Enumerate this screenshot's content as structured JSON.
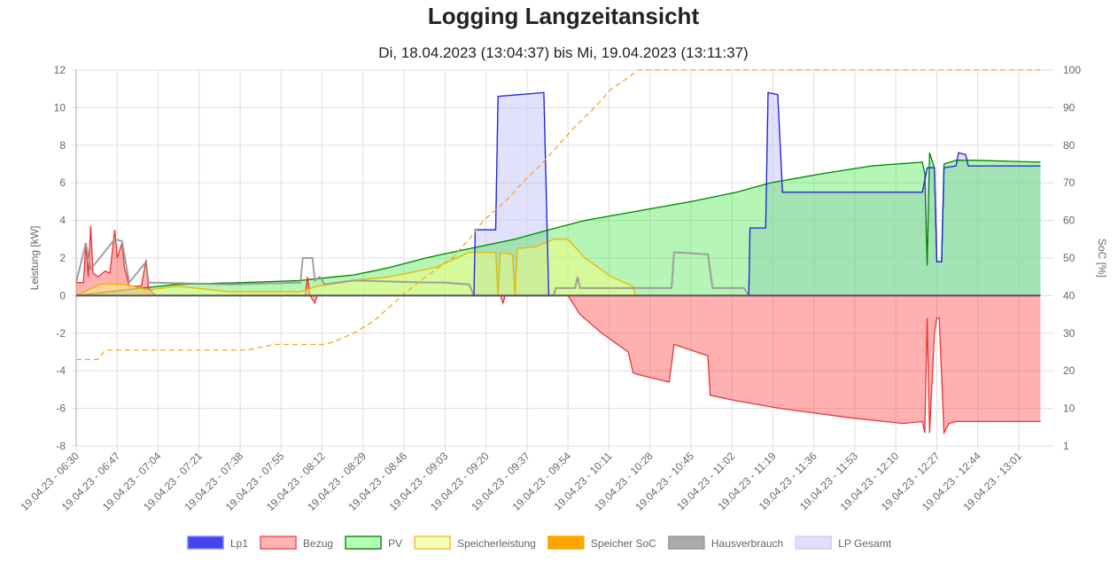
{
  "chart_data": {
    "type": "line",
    "title": "Logging Langzeitansicht",
    "subtitle": "Di, 18.04.2023 (13:04:37) bis Mi, 19.04.2023 (13:11:37)",
    "ylabel": "Leistung [kW]",
    "y2label": "SoC [%]",
    "ylim": [
      -8,
      12
    ],
    "y_ticks": [
      "12",
      "10",
      "8",
      "6",
      "4",
      "2",
      "0",
      "-2",
      "-4",
      "-6",
      "-8"
    ],
    "y2lim": [
      0,
      100
    ],
    "y2_ticks": [
      "100",
      "90",
      "80",
      "70",
      "60",
      "50",
      "40",
      "30",
      "20",
      "10",
      "1"
    ],
    "x_unit": "minutes since 19.04.23 06:30",
    "xlim": [
      0,
      405
    ],
    "x_ticks": [
      "19.04.23 - 06:30",
      "19.04.23 - 06:47",
      "19.04.23 - 07:04",
      "19.04.23 - 07:21",
      "19.04.23 - 07:38",
      "19.04.23 - 07:55",
      "19.04.23 - 08:12",
      "19.04.23 - 08:29",
      "19.04.23 - 08:46",
      "19.04.23 - 09:03",
      "19.04.23 - 09:20",
      "19.04.23 - 09:37",
      "19.04.23 - 09:54",
      "19.04.23 - 10:11",
      "19.04.23 - 10:28",
      "19.04.23 - 10:45",
      "19.04.23 - 11:02",
      "19.04.23 - 11:19",
      "19.04.23 - 11:36",
      "19.04.23 - 11:53",
      "19.04.23 - 12:10",
      "19.04.23 - 12:27",
      "19.04.23 - 12:44",
      "19.04.23 - 13:01"
    ],
    "grid": true,
    "legend_position": "bottom",
    "series": [
      {
        "name": "LP Gesamt",
        "axis": "left",
        "stroke": "#9999ee",
        "fill": "rgba(200,200,250,0.55)",
        "points": [
          [
            0,
            0
          ],
          [
            165,
            0
          ],
          [
            165.5,
            3.5
          ],
          [
            174,
            3.5
          ],
          [
            175,
            10.6
          ],
          [
            194,
            10.8
          ],
          [
            196,
            0
          ],
          [
            279,
            0
          ],
          [
            279.5,
            3.6
          ],
          [
            286,
            3.6
          ],
          [
            287,
            10.8
          ],
          [
            291,
            10.7
          ],
          [
            293,
            5.5
          ],
          [
            351,
            5.5
          ],
          [
            353,
            6.8
          ],
          [
            356,
            6.8
          ],
          [
            357,
            1.8
          ],
          [
            359,
            1.8
          ],
          [
            360,
            6.8
          ],
          [
            365,
            6.9
          ],
          [
            366,
            7.6
          ],
          [
            369,
            7.5
          ],
          [
            370,
            6.9
          ],
          [
            400,
            6.9
          ]
        ]
      },
      {
        "name": "PV",
        "axis": "left",
        "stroke": "#008000",
        "fill": "rgba(60,230,60,0.38)",
        "points": [
          [
            0,
            0
          ],
          [
            20,
            0.3
          ],
          [
            42,
            0.6
          ],
          [
            70,
            0.7
          ],
          [
            93,
            0.8
          ],
          [
            100,
            0.9
          ],
          [
            115,
            1.1
          ],
          [
            123,
            1.3
          ],
          [
            130,
            1.5
          ],
          [
            145,
            2.0
          ],
          [
            152,
            2.2
          ],
          [
            167,
            2.6
          ],
          [
            182,
            3.0
          ],
          [
            196,
            3.5
          ],
          [
            211,
            4.0
          ],
          [
            233,
            4.5
          ],
          [
            255,
            5.0
          ],
          [
            274,
            5.5
          ],
          [
            288,
            6.0
          ],
          [
            310,
            6.5
          ],
          [
            330,
            6.9
          ],
          [
            340,
            7.0
          ],
          [
            351,
            7.1
          ],
          [
            352,
            6.5
          ],
          [
            353,
            1.6
          ],
          [
            354,
            7.6
          ],
          [
            356,
            6.8
          ],
          [
            357,
            1.8
          ],
          [
            359,
            1.8
          ],
          [
            360,
            7.0
          ],
          [
            365,
            7.2
          ],
          [
            373,
            7.2
          ],
          [
            400,
            7.1
          ]
        ]
      },
      {
        "name": "Bezug",
        "axis": "left",
        "stroke": "#ee3333",
        "fill": "rgba(255,80,80,0.45)",
        "points": [
          [
            0,
            0.7
          ],
          [
            3,
            0.7
          ],
          [
            4,
            2.8
          ],
          [
            5,
            1.0
          ],
          [
            6,
            3.7
          ],
          [
            7,
            1.2
          ],
          [
            9,
            1.0
          ],
          [
            12,
            1.3
          ],
          [
            14,
            1.2
          ],
          [
            16,
            3.5
          ],
          [
            17,
            2.0
          ],
          [
            19,
            2.8
          ],
          [
            20,
            1.5
          ],
          [
            22,
            0.5
          ],
          [
            27,
            0.5
          ],
          [
            29,
            1.9
          ],
          [
            30,
            0.4
          ],
          [
            33,
            0
          ],
          [
            95,
            0
          ],
          [
            96,
            1.0
          ],
          [
            97,
            0
          ],
          [
            99,
            -0.4
          ],
          [
            100,
            0
          ],
          [
            176,
            0
          ],
          [
            177,
            -0.4
          ],
          [
            178,
            0
          ],
          [
            204,
            0
          ],
          [
            207,
            -0.6
          ],
          [
            209,
            -1.0
          ],
          [
            218,
            -2.0
          ],
          [
            229,
            -3.0
          ],
          [
            231,
            -4.1
          ],
          [
            233,
            -4.2
          ],
          [
            246,
            -4.6
          ],
          [
            248,
            -2.6
          ],
          [
            262,
            -3.2
          ],
          [
            263,
            -5.3
          ],
          [
            274,
            -5.6
          ],
          [
            292,
            -6.0
          ],
          [
            321,
            -6.5
          ],
          [
            343,
            -6.8
          ],
          [
            351,
            -6.7
          ],
          [
            352,
            -7.3
          ],
          [
            353,
            -1.2
          ],
          [
            354,
            -7.3
          ],
          [
            356,
            -2.0
          ],
          [
            357,
            -1.2
          ],
          [
            358,
            -1.2
          ],
          [
            360,
            -7.3
          ],
          [
            362,
            -6.8
          ],
          [
            365,
            -6.7
          ],
          [
            400,
            -6.7
          ]
        ]
      },
      {
        "name": "Speicherleistung",
        "axis": "left",
        "stroke": "#e6b800",
        "fill": "rgba(255,255,120,0.45)",
        "points": [
          [
            0,
            0
          ],
          [
            5,
            0.3
          ],
          [
            10,
            0.6
          ],
          [
            20,
            0.6
          ],
          [
            30,
            0.3
          ],
          [
            42,
            0.5
          ],
          [
            64,
            0.2
          ],
          [
            93,
            0.2
          ],
          [
            100,
            0.5
          ],
          [
            115,
            0.8
          ],
          [
            130,
            1.0
          ],
          [
            149,
            1.5
          ],
          [
            163,
            2.3
          ],
          [
            174,
            2.3
          ],
          [
            175,
            0
          ],
          [
            176,
            2.3
          ],
          [
            181,
            2.2
          ],
          [
            182,
            0
          ],
          [
            183,
            2.5
          ],
          [
            191,
            2.6
          ],
          [
            198,
            3.0
          ],
          [
            204,
            3.0
          ],
          [
            211,
            2.0
          ],
          [
            222,
            1.0
          ],
          [
            231,
            0.5
          ],
          [
            232,
            0
          ],
          [
            400,
            0
          ]
        ]
      },
      {
        "name": "Hausverbrauch",
        "axis": "left",
        "stroke": "rgba(150,150,150,0.9)",
        "fill": "none",
        "points": [
          [
            0,
            0.7
          ],
          [
            4,
            2.8
          ],
          [
            6,
            1.4
          ],
          [
            16,
            3.0
          ],
          [
            19,
            2.9
          ],
          [
            22,
            0.7
          ],
          [
            29,
            1.8
          ],
          [
            30,
            0.7
          ],
          [
            64,
            0.6
          ],
          [
            93,
            0.7
          ],
          [
            94,
            2.0
          ],
          [
            98,
            2.0
          ],
          [
            99,
            0.8
          ],
          [
            101,
            1.0
          ],
          [
            103,
            0.6
          ],
          [
            115,
            0.8
          ],
          [
            145,
            0.7
          ],
          [
            152,
            0.7
          ],
          [
            163,
            0.6
          ],
          [
            165,
            0
          ],
          [
            198,
            0
          ],
          [
            199,
            0.4
          ],
          [
            207,
            0.4
          ],
          [
            208,
            1.0
          ],
          [
            209,
            0.4
          ],
          [
            247,
            0.4
          ],
          [
            248,
            2.3
          ],
          [
            262,
            2.2
          ],
          [
            264,
            0.4
          ],
          [
            277,
            0.4
          ],
          [
            279,
            0
          ],
          [
            400,
            0
          ]
        ]
      },
      {
        "name": "Lp1",
        "axis": "left",
        "stroke": "#2222dd",
        "fill": "none",
        "points": [
          [
            0,
            0
          ],
          [
            165,
            0
          ],
          [
            165.5,
            3.5
          ],
          [
            174,
            3.5
          ],
          [
            175,
            10.6
          ],
          [
            194,
            10.8
          ],
          [
            196,
            0
          ],
          [
            279,
            0
          ],
          [
            279.5,
            3.6
          ],
          [
            286,
            3.6
          ],
          [
            287,
            10.8
          ],
          [
            291,
            10.7
          ],
          [
            293,
            5.5
          ],
          [
            351,
            5.5
          ],
          [
            353,
            6.8
          ],
          [
            356,
            6.8
          ],
          [
            357,
            1.8
          ],
          [
            359,
            1.8
          ],
          [
            360,
            6.8
          ],
          [
            365,
            6.9
          ],
          [
            366,
            7.6
          ],
          [
            369,
            7.5
          ],
          [
            370,
            6.9
          ],
          [
            400,
            6.9
          ]
        ]
      },
      {
        "name": "Speicher SoC",
        "axis": "right",
        "stroke": "#f5a623",
        "fill": "none",
        "dashed": true,
        "points": [
          [
            0,
            23
          ],
          [
            9,
            23
          ],
          [
            12,
            25.5
          ],
          [
            71,
            25.5
          ],
          [
            82,
            27
          ],
          [
            103,
            27
          ],
          [
            108,
            28
          ],
          [
            115,
            30
          ],
          [
            123,
            33
          ],
          [
            130,
            37
          ],
          [
            137,
            41
          ],
          [
            145,
            45
          ],
          [
            156,
            50
          ],
          [
            163,
            55
          ],
          [
            169,
            60
          ],
          [
            178,
            65
          ],
          [
            185,
            70
          ],
          [
            193,
            75
          ],
          [
            200,
            80
          ],
          [
            207,
            85
          ],
          [
            215,
            90
          ],
          [
            222,
            95
          ],
          [
            229,
            98
          ],
          [
            233,
            100
          ],
          [
            400,
            100
          ]
        ]
      }
    ],
    "legend": [
      {
        "label": "Lp1",
        "fill": "#4444ee",
        "stroke": "#8888ff"
      },
      {
        "label": "Bezug",
        "fill": "#ffb3b3",
        "stroke": "#ee5555"
      },
      {
        "label": "PV",
        "fill": "#b3ffb3",
        "stroke": "#228822"
      },
      {
        "label": "Speicherleistung",
        "fill": "#f5ffb3",
        "stroke": "#f0c040"
      },
      {
        "label": "Speicher SoC",
        "fill": "#ffa500",
        "stroke": "#ffa500"
      },
      {
        "label": "Hausverbrauch",
        "fill": "#aaaaaa",
        "stroke": "#999999"
      },
      {
        "label": "LP Gesamt",
        "fill": "#e0e0fa",
        "stroke": "#d0d0f0"
      }
    ]
  }
}
